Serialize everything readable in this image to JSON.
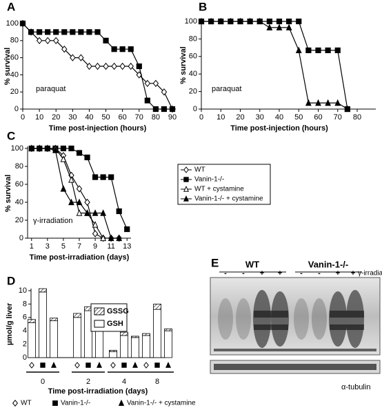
{
  "chart_data": [
    {
      "type": "line",
      "panel": "A",
      "xlabel": "Time post-injection (hours)",
      "ylabel": "% survival",
      "annotation": "paraquat",
      "x": [
        0,
        5,
        10,
        15,
        20,
        25,
        30,
        35,
        40,
        45,
        50,
        55,
        60,
        65,
        70,
        75,
        80,
        85,
        90
      ],
      "series": [
        {
          "marker": "diamond-open",
          "color": "#000000",
          "values": [
            100,
            90,
            80,
            80,
            80,
            70,
            60,
            60,
            50,
            50,
            50,
            50,
            50,
            50,
            40,
            30,
            30,
            20,
            0
          ]
        },
        {
          "marker": "square-filled",
          "color": "#000000",
          "values": [
            100,
            90,
            90,
            90,
            90,
            90,
            90,
            90,
            90,
            90,
            80,
            70,
            70,
            70,
            50,
            10,
            0,
            0,
            0
          ]
        }
      ],
      "xlim": [
        0,
        90
      ],
      "xticks": [
        0,
        10,
        20,
        30,
        40,
        50,
        60,
        70,
        80,
        90
      ],
      "ylim": [
        0,
        100
      ],
      "yticks": [
        0,
        20,
        40,
        60,
        80,
        100
      ]
    },
    {
      "type": "line",
      "panel": "B",
      "xlabel": "Time post-injection (hours)",
      "ylabel": "% survival",
      "annotation": "paraquat",
      "x": [
        0,
        5,
        10,
        15,
        20,
        25,
        30,
        35,
        40,
        45,
        50,
        55,
        60,
        65,
        70,
        75
      ],
      "series": [
        {
          "marker": "square-filled",
          "color": "#000000",
          "values": [
            100,
            100,
            100,
            100,
            100,
            100,
            100,
            100,
            100,
            100,
            100,
            67,
            67,
            67,
            67,
            0
          ]
        },
        {
          "marker": "triangle-filled",
          "color": "#000000",
          "values": [
            100,
            100,
            100,
            100,
            100,
            100,
            100,
            93,
            93,
            93,
            67,
            7,
            7,
            7,
            7,
            0
          ]
        }
      ],
      "xlim": [
        0,
        80
      ],
      "xticks": [
        0,
        10,
        20,
        30,
        40,
        50,
        60,
        70,
        80
      ],
      "ylim": [
        0,
        100
      ],
      "yticks": [
        0,
        20,
        40,
        60,
        80,
        100
      ]
    },
    {
      "type": "line",
      "panel": "C",
      "xlabel": "Time post-irradiation (days)",
      "ylabel": "% survival",
      "annotation": "γ-irradiation",
      "x": [
        1,
        2,
        3,
        4,
        5,
        6,
        7,
        8,
        9,
        10,
        11,
        12,
        13
      ],
      "series": [
        {
          "name": "WT",
          "marker": "diamond-open",
          "color": "#000000",
          "values": [
            100,
            100,
            100,
            100,
            92,
            70,
            55,
            40,
            5,
            0,
            0,
            0,
            null
          ]
        },
        {
          "name": "Vanin-1-/-",
          "marker": "square-filled",
          "color": "#000000",
          "values": [
            100,
            100,
            100,
            100,
            100,
            100,
            95,
            90,
            68,
            68,
            68,
            30,
            10
          ]
        },
        {
          "name": "WT + cystamine",
          "marker": "triangle-open",
          "color": "#000000",
          "values": [
            100,
            100,
            100,
            100,
            88,
            65,
            28,
            28,
            15,
            0,
            null,
            null,
            null
          ]
        },
        {
          "name": "Vanin-1-/- + cystamine",
          "marker": "triangle-filled",
          "color": "#000000",
          "values": [
            100,
            100,
            100,
            98,
            55,
            40,
            40,
            28,
            28,
            28,
            0,
            0,
            null
          ]
        }
      ],
      "xlim": [
        0.5,
        13.5
      ],
      "xticks": [
        1,
        3,
        5,
        7,
        9,
        11,
        13
      ],
      "ylim": [
        0,
        100
      ],
      "yticks": [
        0,
        20,
        40,
        60,
        80,
        100
      ]
    },
    {
      "type": "stacked_bar",
      "panel": "D",
      "xlabel": "Time post-irradiation (days)",
      "ylabel": "µmol/g liver",
      "categories": [
        "0",
        "2",
        "4",
        "8"
      ],
      "members": [
        {
          "name": "WT",
          "marker": "diamond-open"
        },
        {
          "name": "Vanin-1-/-",
          "marker": "square-filled"
        },
        {
          "name": "Vanin-1-/- + cystamine",
          "marker": "triangle-filled"
        }
      ],
      "series": [
        {
          "name": "GSH",
          "fill": "open",
          "values": [
            [
              5.2,
              9.8,
              5.5
            ],
            [
              6.0,
              7.0,
              6.0
            ],
            [
              0.9,
              3.3,
              3.0
            ],
            [
              3.3,
              7.2,
              4.0
            ]
          ]
        },
        {
          "name": "GSSG",
          "fill": "hatched",
          "values": [
            [
              0.5,
              0.5,
              0.4
            ],
            [
              0.6,
              0.6,
              0.5
            ],
            [
              0.2,
              0.5,
              0.2
            ],
            [
              0.3,
              0.8,
              0.3
            ]
          ]
        }
      ],
      "ylim": [
        0,
        10
      ],
      "yticks": [
        0,
        2,
        4,
        6,
        8,
        10
      ]
    }
  ],
  "blot": {
    "panel": "E",
    "groups": [
      "WT",
      "Vanin-1-/-"
    ],
    "lanes": [
      "-",
      "-",
      "+",
      "+",
      "-",
      "-",
      "+",
      "+"
    ],
    "treatment": "γ-irradiation",
    "loading": "α-tubulin"
  }
}
